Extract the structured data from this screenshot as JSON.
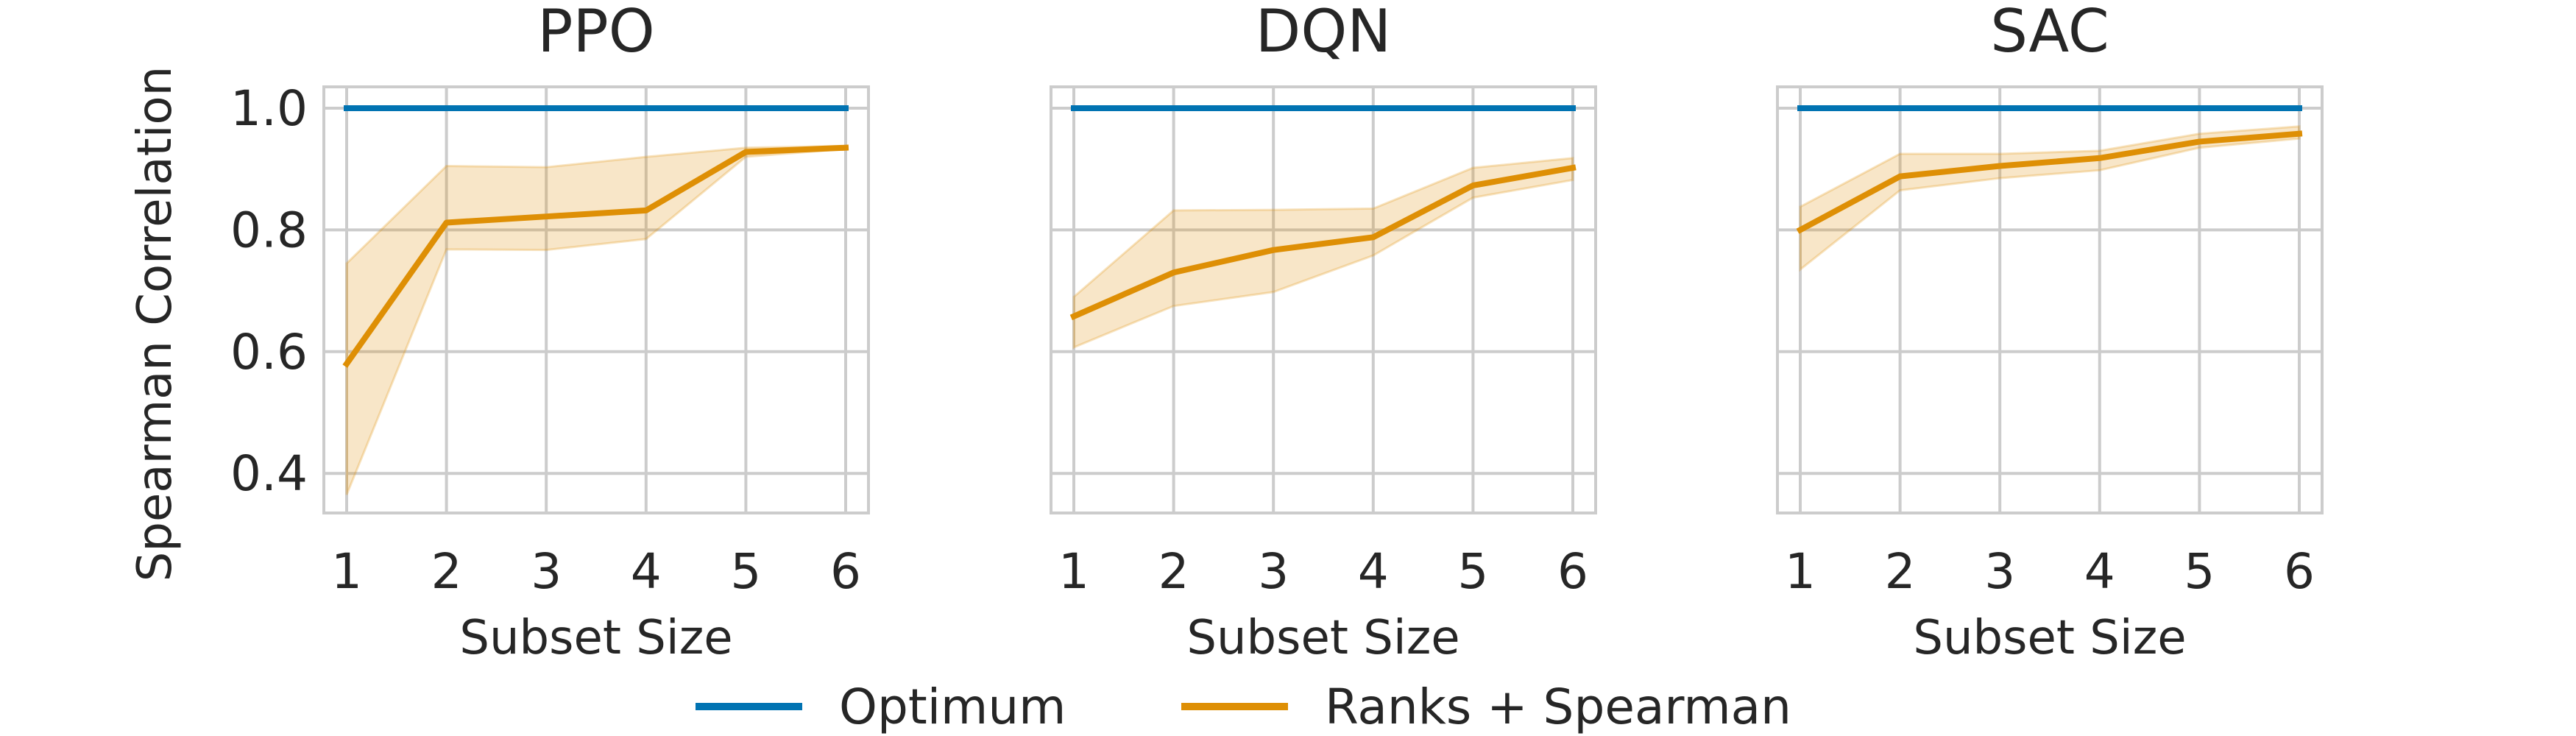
{
  "figure": {
    "ylabel": "Spearman Correlation",
    "xlabel": "Subset Size",
    "legend": {
      "placement": "bottom-center",
      "items": [
        {
          "label": "Optimum",
          "color": "#0173b2"
        },
        {
          "label": "Ranks + Spearman",
          "color": "#de8f05"
        }
      ]
    },
    "colors": {
      "optimum": "#0173b2",
      "ranks": "#de8f05",
      "grid": "#cccccc",
      "text": "#262626"
    }
  },
  "chart_data": [
    {
      "type": "line",
      "title": "PPO",
      "x": [
        1,
        2,
        3,
        4,
        5,
        6
      ],
      "xlabel": "Subset Size",
      "ylabel": "Spearman Correlation",
      "ylim": [
        0.335,
        1.035
      ],
      "yticks": [
        0.4,
        0.6,
        0.8,
        1.0
      ],
      "grid": true,
      "series": [
        {
          "name": "Optimum",
          "values": [
            1.0,
            1.0,
            1.0,
            1.0,
            1.0,
            1.0
          ]
        },
        {
          "name": "Ranks + Spearman",
          "values": [
            0.58,
            0.812,
            0.822,
            0.832,
            0.928,
            0.935
          ],
          "lower": [
            0.365,
            0.768,
            0.767,
            0.785,
            0.92,
            0.933
          ],
          "upper": [
            0.745,
            0.905,
            0.903,
            0.92,
            0.935,
            0.938
          ]
        }
      ]
    },
    {
      "type": "line",
      "title": "DQN",
      "x": [
        1,
        2,
        3,
        4,
        5,
        6
      ],
      "xlabel": "Subset Size",
      "ylim": [
        0.335,
        1.035
      ],
      "yticks": [
        0.4,
        0.6,
        0.8,
        1.0
      ],
      "grid": true,
      "series": [
        {
          "name": "Optimum",
          "values": [
            1.0,
            1.0,
            1.0,
            1.0,
            1.0,
            1.0
          ]
        },
        {
          "name": "Ranks + Spearman",
          "values": [
            0.658,
            0.73,
            0.767,
            0.788,
            0.873,
            0.902
          ],
          "lower": [
            0.607,
            0.675,
            0.698,
            0.758,
            0.853,
            0.882
          ],
          "upper": [
            0.69,
            0.832,
            0.833,
            0.835,
            0.902,
            0.918
          ]
        }
      ]
    },
    {
      "type": "line",
      "title": "SAC",
      "x": [
        1,
        2,
        3,
        4,
        5,
        6
      ],
      "xlabel": "Subset Size",
      "ylim": [
        0.335,
        1.035
      ],
      "yticks": [
        0.4,
        0.6,
        0.8,
        1.0
      ],
      "grid": true,
      "series": [
        {
          "name": "Optimum",
          "values": [
            1.0,
            1.0,
            1.0,
            1.0,
            1.0,
            1.0
          ]
        },
        {
          "name": "Ranks + Spearman",
          "values": [
            0.8,
            0.888,
            0.905,
            0.918,
            0.945,
            0.958
          ],
          "lower": [
            0.735,
            0.865,
            0.885,
            0.898,
            0.935,
            0.95
          ],
          "upper": [
            0.838,
            0.925,
            0.925,
            0.93,
            0.958,
            0.97
          ]
        }
      ]
    }
  ]
}
